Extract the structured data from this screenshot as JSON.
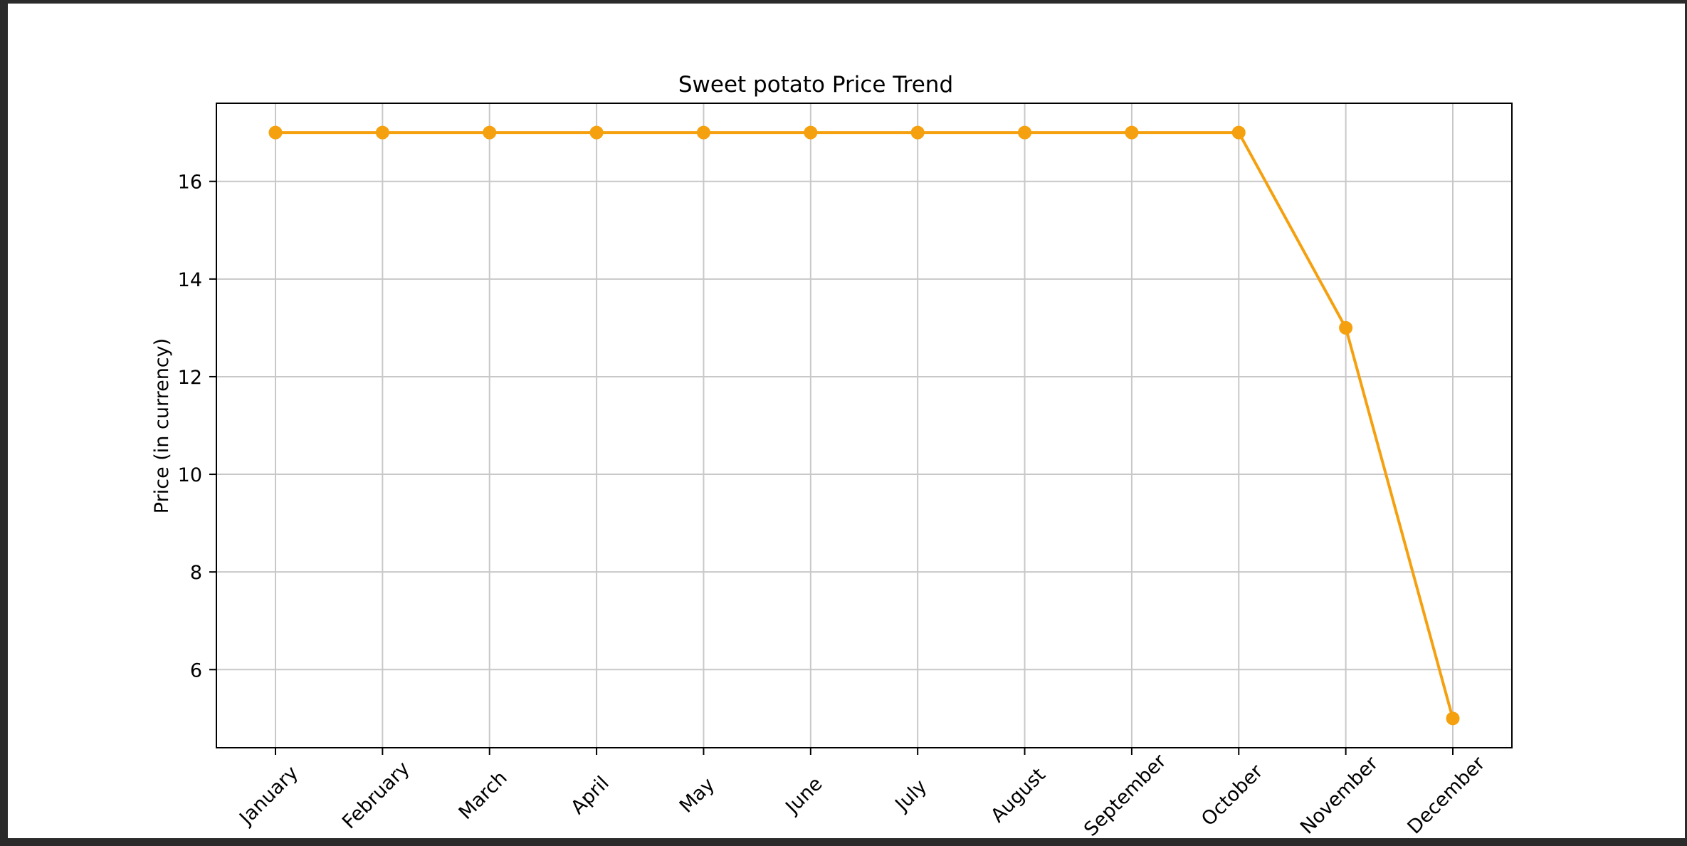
{
  "chart_data": {
    "type": "line",
    "title": "Sweet potato Price Trend",
    "xlabel": "",
    "ylabel": "Price (in currency)",
    "categories": [
      "January",
      "February",
      "March",
      "April",
      "May",
      "June",
      "July",
      "August",
      "September",
      "October",
      "November",
      "December"
    ],
    "series": [
      {
        "values": [
          17,
          17,
          17,
          17,
          17,
          17,
          17,
          17,
          17,
          17,
          13,
          5
        ]
      }
    ],
    "yticks": [
      "6",
      "8",
      "10",
      "12",
      "14",
      "16"
    ],
    "ylim": [
      4.4,
      17.6
    ],
    "grid": true,
    "legend": "none",
    "colors": {
      "line": "#f5a00f",
      "grid": "#c8c8c8",
      "axis": "#000000"
    }
  }
}
